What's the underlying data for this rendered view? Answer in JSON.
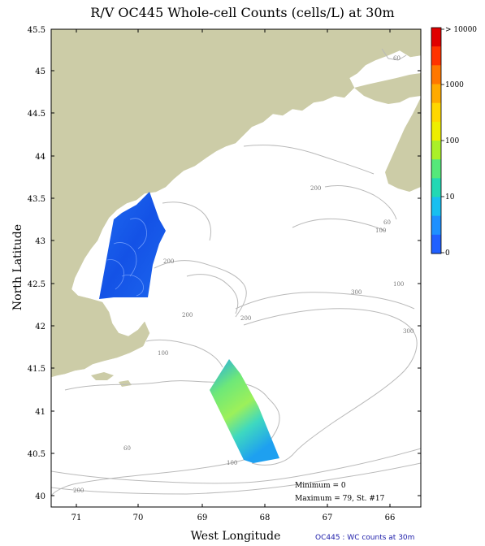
{
  "title": "R/V OC445 Whole-cell Counts (cells/L) at 30m",
  "x_axis_label": "West Longitude",
  "y_axis_label": "North Latitude",
  "footer_note": "OC445 : WC counts at 30m",
  "x_ticks": [
    "71",
    "70",
    "69",
    "68",
    "67",
    "66"
  ],
  "y_ticks": [
    "45.5",
    "45",
    "44.5",
    "44",
    "43.5",
    "43",
    "42.5",
    "42",
    "41.5",
    "41",
    "40.5",
    "40"
  ],
  "colorbar": {
    "labels": [
      "> 10000",
      "1000",
      "100",
      "10",
      "0"
    ],
    "colors": [
      "#e00000",
      "#ff3300",
      "#ff7700",
      "#ffaa00",
      "#ffd700",
      "#eeee00",
      "#aaf028",
      "#55e87a",
      "#22d8b4",
      "#18bff0",
      "#1e90ff",
      "#2060ff"
    ]
  },
  "stats": {
    "minimum": "Minimum = 0",
    "maximum": "Maximum = 79, St. #17"
  },
  "contour_labels": [
    "60",
    "60",
    "100",
    "200",
    "200",
    "200",
    "300",
    "100",
    "300",
    "200",
    "100",
    "100",
    "60",
    "200"
  ],
  "colors": {
    "land": "#cccca7",
    "contour": "#b9b9b9",
    "footer": "#1a1aa8"
  }
}
